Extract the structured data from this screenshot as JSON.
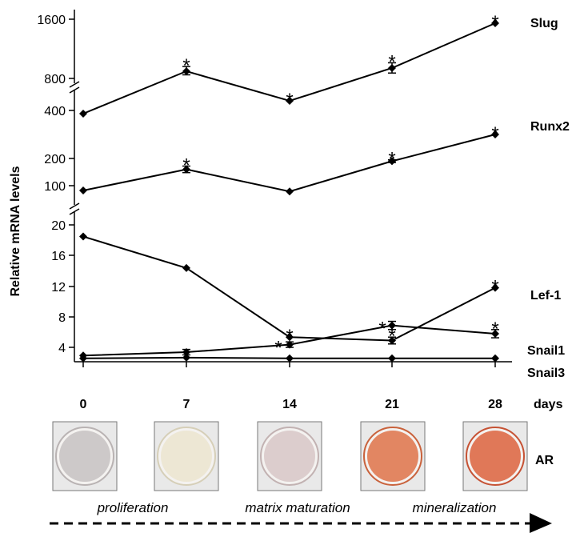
{
  "chart_data": {
    "type": "line",
    "ylabel": "Relative mRNA levels",
    "xlabel": "days",
    "x": [
      0,
      7,
      14,
      21,
      28
    ],
    "x_tick_labels": [
      "0",
      "7",
      "14",
      "21",
      "28"
    ],
    "y_axis": "broken",
    "y_segments": [
      {
        "range": [
          0,
          22
        ],
        "ticks": [
          "4",
          "8",
          "12",
          "16",
          "20"
        ]
      },
      {
        "range": [
          80,
          400
        ],
        "ticks": [
          "100",
          "200",
          "400"
        ]
      },
      {
        "range": [
          400,
          1600
        ],
        "ticks": [
          "800",
          "1600"
        ]
      }
    ],
    "series": [
      {
        "name": "Slug",
        "values": [
          370,
          920,
          520,
          960,
          1560
        ],
        "error": [
          0,
          60,
          0,
          70,
          0
        ],
        "significant": [
          false,
          true,
          true,
          true,
          true
        ]
      },
      {
        "name": "Runx2",
        "values": [
          85,
          160,
          82,
          190,
          300
        ],
        "error": [
          0,
          12,
          0,
          5,
          0
        ],
        "significant": [
          false,
          true,
          false,
          true,
          true
        ]
      },
      {
        "name": "Lef-1",
        "values": [
          18.3,
          13.7,
          3.6,
          3.1,
          10.8
        ],
        "error": [
          0,
          0,
          0,
          0.5,
          0
        ],
        "significant": [
          false,
          false,
          true,
          true,
          true
        ]
      },
      {
        "name": "Snail1",
        "values": [
          0.9,
          1.4,
          2.5,
          5.3,
          4.1
        ],
        "error": [
          0,
          0.4,
          0.4,
          0.6,
          0.6
        ],
        "significant": [
          false,
          false,
          true,
          true,
          true
        ]
      },
      {
        "name": "Snail3",
        "values": [
          0.5,
          0.6,
          0.5,
          0.5,
          0.5
        ],
        "error": [
          0,
          0,
          0,
          0,
          0
        ],
        "significant": [
          false,
          false,
          false,
          false,
          false
        ]
      }
    ],
    "significance_marker": "*",
    "grid": false,
    "legend": "series labels at right end of lines"
  },
  "stain": {
    "label": "AR",
    "wells": [
      {
        "day": "0",
        "color": "#c9c4c4",
        "rim": "#b9b3b3"
      },
      {
        "day": "7",
        "color": "#ece6d0",
        "rim": "#d6cfb8"
      },
      {
        "day": "14",
        "color": "#d9c9c9",
        "rim": "#c2b2b2"
      },
      {
        "day": "21",
        "color": "#e07a52",
        "rim": "#c9623c"
      },
      {
        "day": "28",
        "color": "#de6a47",
        "rim": "#c65234"
      }
    ]
  },
  "stages": [
    "proliferation",
    "matrix maturation",
    "mineralization"
  ]
}
